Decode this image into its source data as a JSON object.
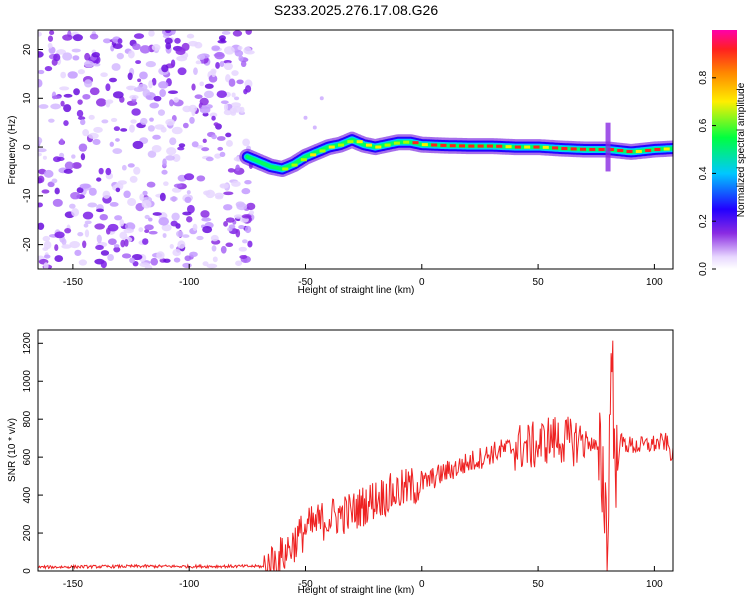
{
  "chart_data": [
    {
      "type": "heatmap",
      "title": "S233.2025.276.17.08.G26",
      "xlabel": "Height of straight line (km)",
      "ylabel": "Frequency (Hz)",
      "xlim": [
        -165,
        108
      ],
      "ylim": [
        -25,
        24
      ],
      "xticks": [
        -150,
        -100,
        -50,
        0,
        50,
        100
      ],
      "yticks": [
        -20,
        -10,
        0,
        10,
        20
      ],
      "colorbar": {
        "label": "Normalized spectral amplitude",
        "range": [
          0,
          1
        ],
        "ticks": [
          0.0,
          0.2,
          0.4,
          0.6,
          0.8
        ]
      },
      "noise_region_x": [
        -165,
        -73
      ],
      "signal_track": {
        "x": [
          -75,
          -70,
          -65,
          -60,
          -55,
          -50,
          -45,
          -40,
          -35,
          -30,
          -25,
          -20,
          -15,
          -10,
          -5,
          0,
          10,
          20,
          30,
          40,
          50,
          60,
          70,
          80,
          90,
          100,
          108
        ],
        "frequency": [
          -2,
          -3,
          -4,
          -4.5,
          -3.5,
          -2,
          -1,
          0,
          0.5,
          1.5,
          0.5,
          0,
          0.5,
          1,
          1,
          0.5,
          0.3,
          0.2,
          0.2,
          0,
          0,
          -0.3,
          -0.5,
          -0.5,
          -1,
          -0.5,
          -0.3
        ]
      }
    },
    {
      "type": "line",
      "title": "",
      "xlabel": "Height of straight line (km)",
      "ylabel": "SNR (10 * v/v)",
      "xlim": [
        -165,
        108
      ],
      "ylim": [
        0,
        1270
      ],
      "xticks": [
        -150,
        -100,
        -50,
        0,
        50,
        100
      ],
      "yticks": [
        0,
        200,
        400,
        600,
        800,
        1000,
        1200
      ],
      "series": [
        {
          "name": "SNR",
          "color": "#ee2222",
          "x": [
            -165,
            -150,
            -120,
            -100,
            -75,
            -70,
            -67,
            -60,
            -55,
            -50,
            -40,
            -30,
            -20,
            -10,
            0,
            10,
            20,
            30,
            35,
            40,
            50,
            55,
            60,
            65,
            70,
            75,
            78,
            80,
            81,
            82,
            83,
            85,
            90,
            95,
            100,
            105,
            108
          ],
          "values": [
            20,
            22,
            25,
            24,
            25,
            25,
            20,
            80,
            150,
            220,
            280,
            310,
            380,
            420,
            460,
            520,
            570,
            620,
            640,
            650,
            660,
            700,
            690,
            680,
            700,
            650,
            500,
            150,
            900,
            1260,
            400,
            680,
            660,
            660,
            670,
            680,
            600
          ]
        }
      ]
    }
  ]
}
